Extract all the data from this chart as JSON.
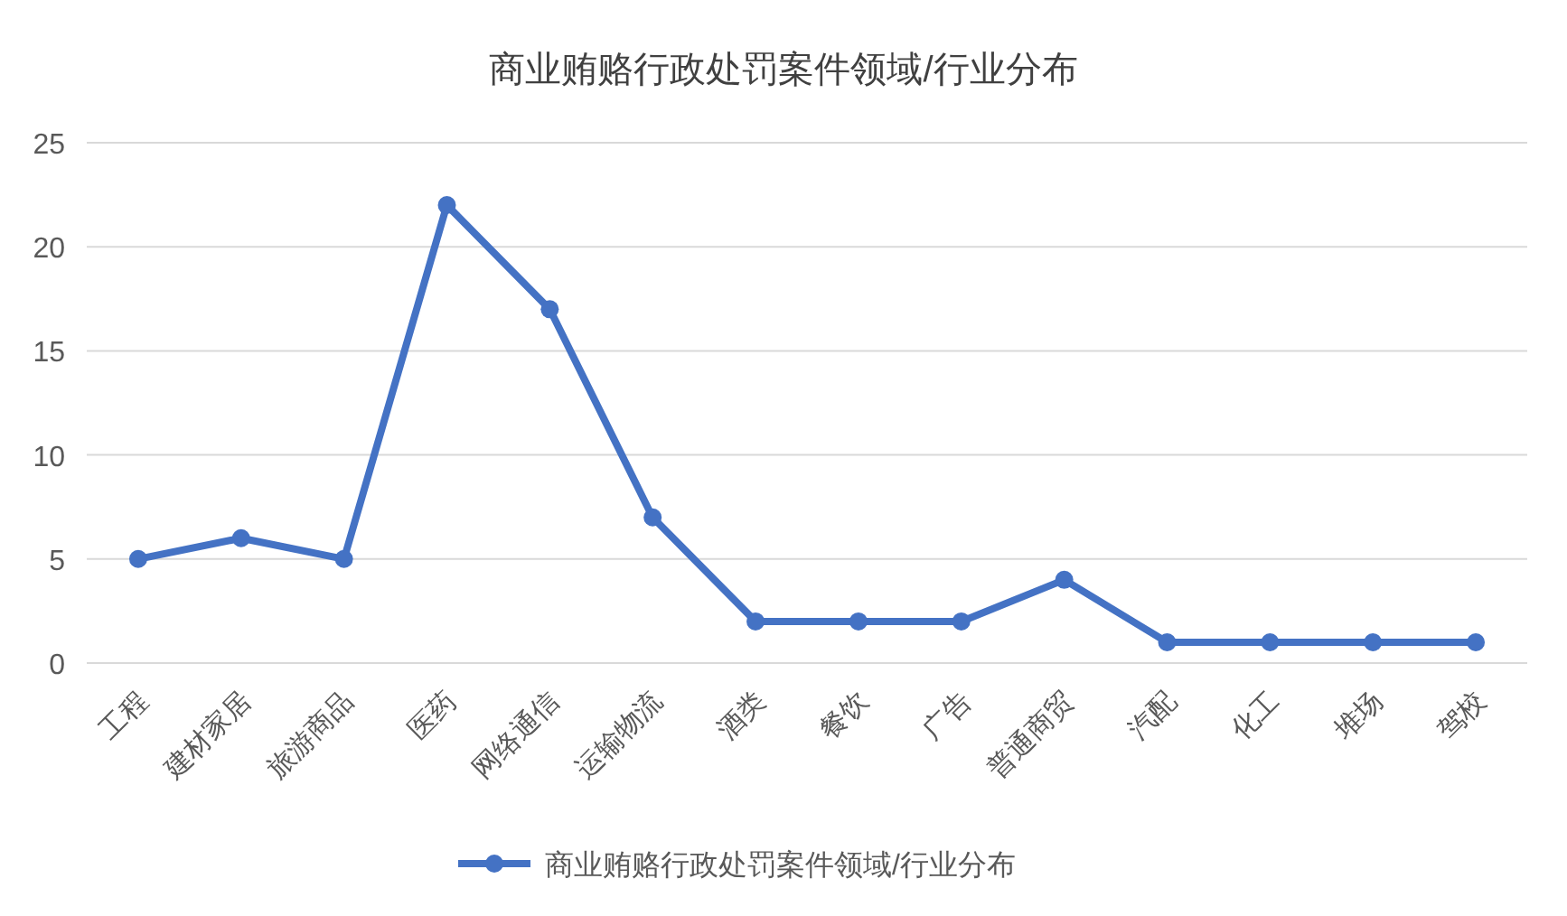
{
  "chart_data": {
    "type": "line",
    "title": "商业贿赂行政处罚案件领域/行业分布",
    "categories": [
      "工程",
      "建材家居",
      "旅游商品",
      "医药",
      "网络通信",
      "运输物流",
      "酒类",
      "餐饮",
      "广告",
      "普通商贸",
      "汽配",
      "化工",
      "堆场",
      "驾校"
    ],
    "series": [
      {
        "name": "商业贿赂行政处罚案件领域/行业分布",
        "color": "#4472c4",
        "values": [
          5,
          6,
          5,
          22,
          17,
          7,
          2,
          2,
          2,
          4,
          1,
          1,
          1,
          1
        ]
      }
    ],
    "ylim": [
      0,
      25
    ],
    "yticks": [
      0,
      5,
      10,
      15,
      20,
      25
    ],
    "grid": "y",
    "legend": "bottom",
    "marker": "circle",
    "line_style": "solid"
  }
}
